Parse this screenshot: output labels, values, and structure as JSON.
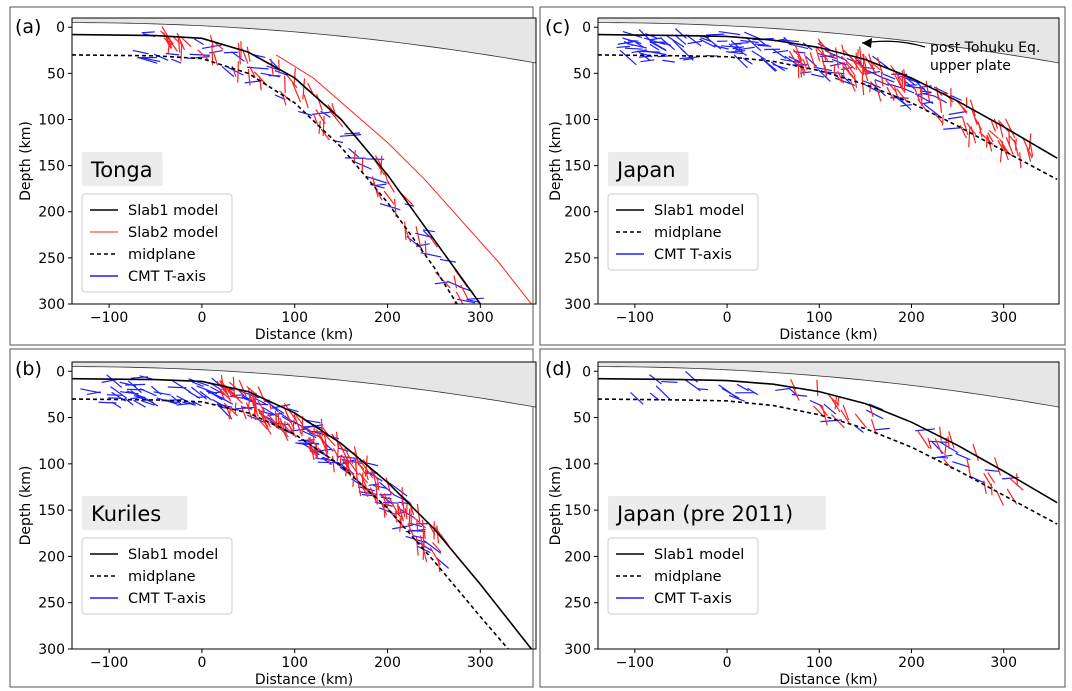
{
  "figure": {
    "panels": [
      {
        "id": "a",
        "panel_label": "(a)",
        "region": "Tonga",
        "xlabel": "Distance (km)",
        "ylabel": "Depth (km)",
        "xlim": [
          -140,
          360
        ],
        "ylim": [
          300,
          -10
        ],
        "xticks": [
          -100,
          0,
          100,
          200,
          300
        ],
        "yticks": [
          0,
          50,
          100,
          150,
          200,
          250,
          300
        ],
        "legend": [
          "Slab1 model",
          "Slab2 model",
          "midplane",
          "CMT T-axis"
        ],
        "annotation": "",
        "chart_data": {
          "type": "line",
          "series": [
            {
              "name": "Slab1 model",
              "color": "#000000",
              "style": "solid",
              "x": [
                -140,
                -50,
                0,
                50,
                100,
                150,
                200,
                250,
                300
              ],
              "y": [
                8,
                9,
                12,
                27,
                55,
                100,
                160,
                230,
                300
              ]
            },
            {
              "name": "Slab2 model",
              "color": "#ff2020",
              "style": "solid",
              "x": [
                80,
                120,
                160,
                200,
                240,
                280,
                320,
                355
              ],
              "y": [
                30,
                55,
                90,
                125,
                165,
                210,
                255,
                300
              ]
            },
            {
              "name": "midplane",
              "color": "#000000",
              "style": "dashed",
              "x": [
                -140,
                -50,
                0,
                50,
                100,
                150,
                200,
                250,
                275
              ],
              "y": [
                30,
                31,
                34,
                50,
                82,
                130,
                190,
                260,
                300
              ]
            }
          ],
          "points": [
            {
              "name": "CMT T-axis",
              "color": "#1f1fff",
              "note": "blue dashes"
            },
            {
              "color": "#ff2020",
              "note": "red dashes"
            }
          ],
          "surface_band": {
            "fill": "#e6e6e6"
          }
        }
      },
      {
        "id": "c",
        "panel_label": "(c)",
        "region": "Japan",
        "xlabel": "Distance (km)",
        "ylabel": "Depth (km)",
        "xlim": [
          -140,
          360
        ],
        "ylim": [
          300,
          -10
        ],
        "xticks": [
          -100,
          0,
          100,
          200,
          300
        ],
        "yticks": [
          0,
          50,
          100,
          150,
          200,
          250,
          300
        ],
        "legend": [
          "Slab1 model",
          "midplane",
          "CMT T-axis"
        ],
        "annotation": "post Tohuku Eq.\n upper plate",
        "chart_data": {
          "type": "line",
          "series": [
            {
              "name": "Slab1 model",
              "color": "#000000",
              "style": "solid",
              "x": [
                -140,
                -50,
                0,
                50,
                100,
                150,
                200,
                250,
                300,
                358
              ],
              "y": [
                8,
                9,
                10,
                14,
                22,
                35,
                55,
                80,
                108,
                142
              ]
            },
            {
              "name": "midplane",
              "color": "#000000",
              "style": "dashed",
              "x": [
                -140,
                -50,
                0,
                50,
                100,
                150,
                200,
                250,
                300,
                358
              ],
              "y": [
                30,
                31,
                32,
                37,
                47,
                62,
                82,
                107,
                134,
                165
              ]
            }
          ],
          "points": [
            {
              "name": "CMT T-axis",
              "color": "#1f1fff",
              "note": "blue dashes"
            },
            {
              "color": "#ff2020",
              "note": "red dashes"
            }
          ],
          "surface_band": {
            "fill": "#e6e6e6"
          }
        }
      },
      {
        "id": "b",
        "panel_label": "(b)",
        "region": "Kuriles",
        "xlabel": "Distance (km)",
        "ylabel": "Depth (km)",
        "xlim": [
          -140,
          360
        ],
        "ylim": [
          300,
          -10
        ],
        "xticks": [
          -100,
          0,
          100,
          200,
          300
        ],
        "yticks": [
          0,
          50,
          100,
          150,
          200,
          250,
          300
        ],
        "legend": [
          "Slab1 model",
          "midplane",
          "CMT T-axis"
        ],
        "annotation": "",
        "chart_data": {
          "type": "line",
          "series": [
            {
              "name": "Slab1 model",
              "color": "#000000",
              "style": "solid",
              "x": [
                -140,
                -50,
                0,
                50,
                100,
                150,
                200,
                250,
                300,
                355
              ],
              "y": [
                8,
                9,
                11,
                22,
                45,
                78,
                120,
                170,
                230,
                300
              ]
            },
            {
              "name": "midplane",
              "color": "#000000",
              "style": "dashed",
              "x": [
                -140,
                -50,
                0,
                50,
                100,
                150,
                200,
                250,
                300,
                330
              ],
              "y": [
                30,
                31,
                33,
                45,
                68,
                102,
                148,
                205,
                265,
                300
              ]
            }
          ],
          "points": [
            {
              "name": "CMT T-axis",
              "color": "#1f1fff",
              "note": "blue dashes"
            },
            {
              "color": "#ff2020",
              "note": "red dashes"
            }
          ],
          "surface_band": {
            "fill": "#e6e6e6"
          }
        }
      },
      {
        "id": "d",
        "panel_label": "(d)",
        "region": "Japan (pre 2011)",
        "xlabel": "Distance (km)",
        "ylabel": "Depth (km)",
        "xlim": [
          -140,
          360
        ],
        "ylim": [
          300,
          -10
        ],
        "xticks": [
          -100,
          0,
          100,
          200,
          300
        ],
        "yticks": [
          0,
          50,
          100,
          150,
          200,
          250,
          300
        ],
        "legend": [
          "Slab1 model",
          "midplane",
          "CMT T-axis"
        ],
        "annotation": "",
        "chart_data": {
          "type": "line",
          "series": [
            {
              "name": "Slab1 model",
              "color": "#000000",
              "style": "solid",
              "x": [
                -140,
                -50,
                0,
                50,
                100,
                150,
                200,
                250,
                300,
                358
              ],
              "y": [
                8,
                9,
                10,
                14,
                22,
                35,
                55,
                80,
                108,
                142
              ]
            },
            {
              "name": "midplane",
              "color": "#000000",
              "style": "dashed",
              "x": [
                -140,
                -50,
                0,
                50,
                100,
                150,
                200,
                250,
                300,
                358
              ],
              "y": [
                30,
                31,
                32,
                37,
                47,
                62,
                82,
                107,
                134,
                165
              ]
            }
          ],
          "points": [
            {
              "name": "CMT T-axis",
              "color": "#1f1fff",
              "note": "blue dashes"
            },
            {
              "color": "#ff2020",
              "note": "red dashes"
            }
          ],
          "surface_band": {
            "fill": "#e6e6e6"
          }
        }
      }
    ]
  }
}
